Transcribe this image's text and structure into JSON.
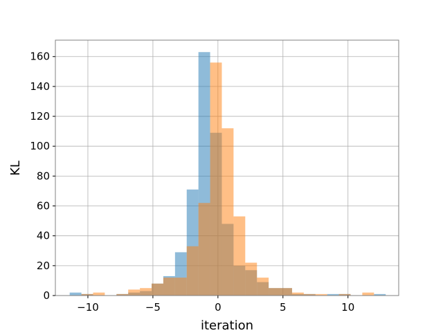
{
  "chart_data": {
    "type": "histogram",
    "xlabel": "iteration",
    "ylabel": "KL",
    "xlim": [
      -12.5,
      13.9
    ],
    "ylim": [
      0,
      171
    ],
    "grid": true,
    "x_ticks": [
      -10,
      -5,
      0,
      5,
      10
    ],
    "x_tick_labels": [
      "−10",
      "−5",
      "0",
      "5",
      "10"
    ],
    "y_ticks": [
      0,
      20,
      40,
      60,
      80,
      100,
      120,
      140,
      160
    ],
    "y_tick_labels": [
      "0",
      "20",
      "40",
      "60",
      "80",
      "100",
      "120",
      "140",
      "160"
    ],
    "series": [
      {
        "color": "#1f77b4",
        "alpha": 0.5,
        "bin_edges": [
          -11.4,
          -10.5,
          -9.6,
          -8.7,
          -7.8,
          -6.9,
          -6.0,
          -5.1,
          -4.2,
          -3.3,
          -2.4,
          -1.5,
          -0.6,
          0.3,
          1.2,
          2.1,
          3.0,
          3.9,
          4.8,
          5.7,
          6.6,
          7.5,
          8.4,
          9.3,
          10.2,
          11.1,
          12.0,
          12.9
        ],
        "counts": [
          2,
          1,
          0,
          0,
          1,
          2,
          3,
          8,
          13,
          29,
          71,
          163,
          109,
          48,
          20,
          17,
          9,
          5,
          5,
          1,
          1,
          0,
          1,
          1,
          0,
          0,
          1
        ]
      },
      {
        "color": "#ff7f0e",
        "alpha": 0.5,
        "bin_edges": [
          -10.5,
          -9.6,
          -8.7,
          -7.8,
          -6.9,
          -6.0,
          -5.1,
          -4.2,
          -3.3,
          -2.4,
          -1.5,
          -0.6,
          0.3,
          1.2,
          2.1,
          3.0,
          3.9,
          4.8,
          5.7,
          6.6,
          7.5,
          8.4,
          9.3,
          10.2,
          11.1,
          12.0
        ],
        "counts": [
          1,
          2,
          0,
          1,
          4,
          5,
          8,
          12,
          12,
          33,
          62,
          156,
          112,
          53,
          22,
          12,
          5,
          5,
          2,
          1,
          1,
          0,
          1,
          0,
          2
        ]
      }
    ]
  }
}
